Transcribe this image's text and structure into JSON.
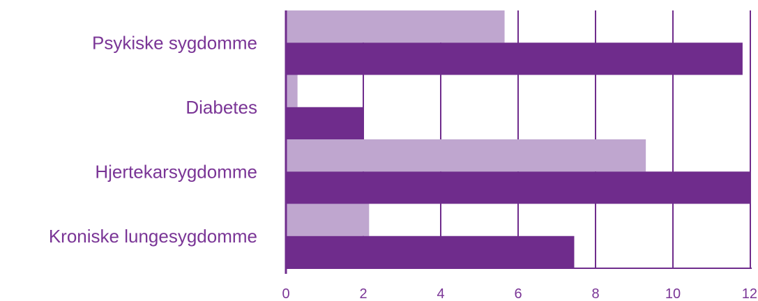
{
  "chart_data": {
    "type": "bar",
    "orientation": "horizontal",
    "categories": [
      "Psykiske sygdomme",
      "Diabetes",
      "Hjertekarsygdomme",
      "Kroniske lungesygdomme"
    ],
    "series": [
      {
        "values": [
          5.65,
          0.3,
          9.3,
          2.15
        ]
      },
      {
        "values": [
          11.8,
          2.0,
          12.0,
          7.45
        ]
      }
    ],
    "xlim": [
      0,
      12
    ],
    "xticks": [
      "0",
      "2",
      "4",
      "6",
      "8",
      "10",
      "12"
    ],
    "grid": "vertical",
    "legend": "none",
    "title": "",
    "xlabel": "",
    "ylabel": ""
  },
  "colors": {
    "series_light": "#bfa6cf",
    "series_dark": "#6f2c8c",
    "axis": "#6f2c8c",
    "text": "#7a3596"
  }
}
